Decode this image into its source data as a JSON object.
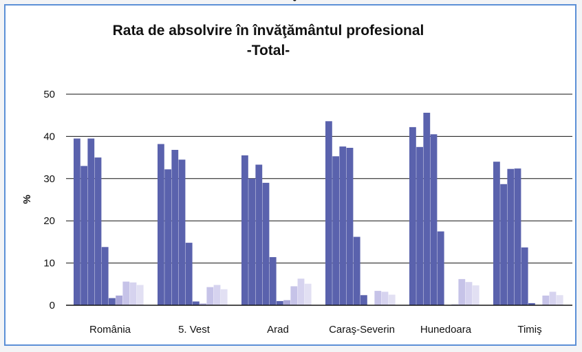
{
  "chart_data": {
    "type": "bar",
    "title_line1": "Rata de absolvire în învăţământul profesional",
    "title_line2": "-Total-",
    "top_mark": "ˇ",
    "xlabel": "",
    "ylabel": "%",
    "ylim": [
      0,
      50
    ],
    "yticks": [
      0,
      10,
      20,
      30,
      40,
      50
    ],
    "grid": true,
    "legend": "none",
    "categories": [
      "România",
      "5. Vest",
      "Arad",
      "Caraş-Severin",
      "Hunedoara",
      "Timiş"
    ],
    "series": [
      {
        "color": "#5a62ad",
        "values": [
          39.5,
          38.2,
          35.5,
          43.6,
          42.2,
          34.0
        ]
      },
      {
        "color": "#5a62ad",
        "values": [
          33.0,
          32.2,
          30.0,
          35.3,
          37.5,
          28.7
        ]
      },
      {
        "color": "#5a62ad",
        "values": [
          39.5,
          36.8,
          33.3,
          37.6,
          45.6,
          32.3
        ]
      },
      {
        "color": "#5a62ad",
        "values": [
          35.0,
          34.5,
          29.0,
          37.3,
          40.5,
          32.4
        ]
      },
      {
        "color": "#5a62ad",
        "values": [
          13.8,
          14.8,
          11.4,
          16.2,
          17.5,
          13.7
        ]
      },
      {
        "color": "#5a62ad",
        "values": [
          1.7,
          0.9,
          1.0,
          2.4,
          0.0,
          0.5
        ]
      },
      {
        "color": "#a9a6d8",
        "values": [
          2.3,
          0.4,
          1.2,
          0.0,
          0.2,
          0.0
        ]
      },
      {
        "color": "#c6c3e8",
        "values": [
          5.6,
          4.3,
          4.5,
          3.4,
          6.2,
          2.3
        ]
      },
      {
        "color": "#d6d3ef",
        "values": [
          5.4,
          4.8,
          6.3,
          3.2,
          5.5,
          3.2
        ]
      },
      {
        "color": "#e2e0f3",
        "values": [
          4.8,
          3.8,
          5.1,
          2.5,
          4.7,
          2.4
        ]
      }
    ]
  }
}
